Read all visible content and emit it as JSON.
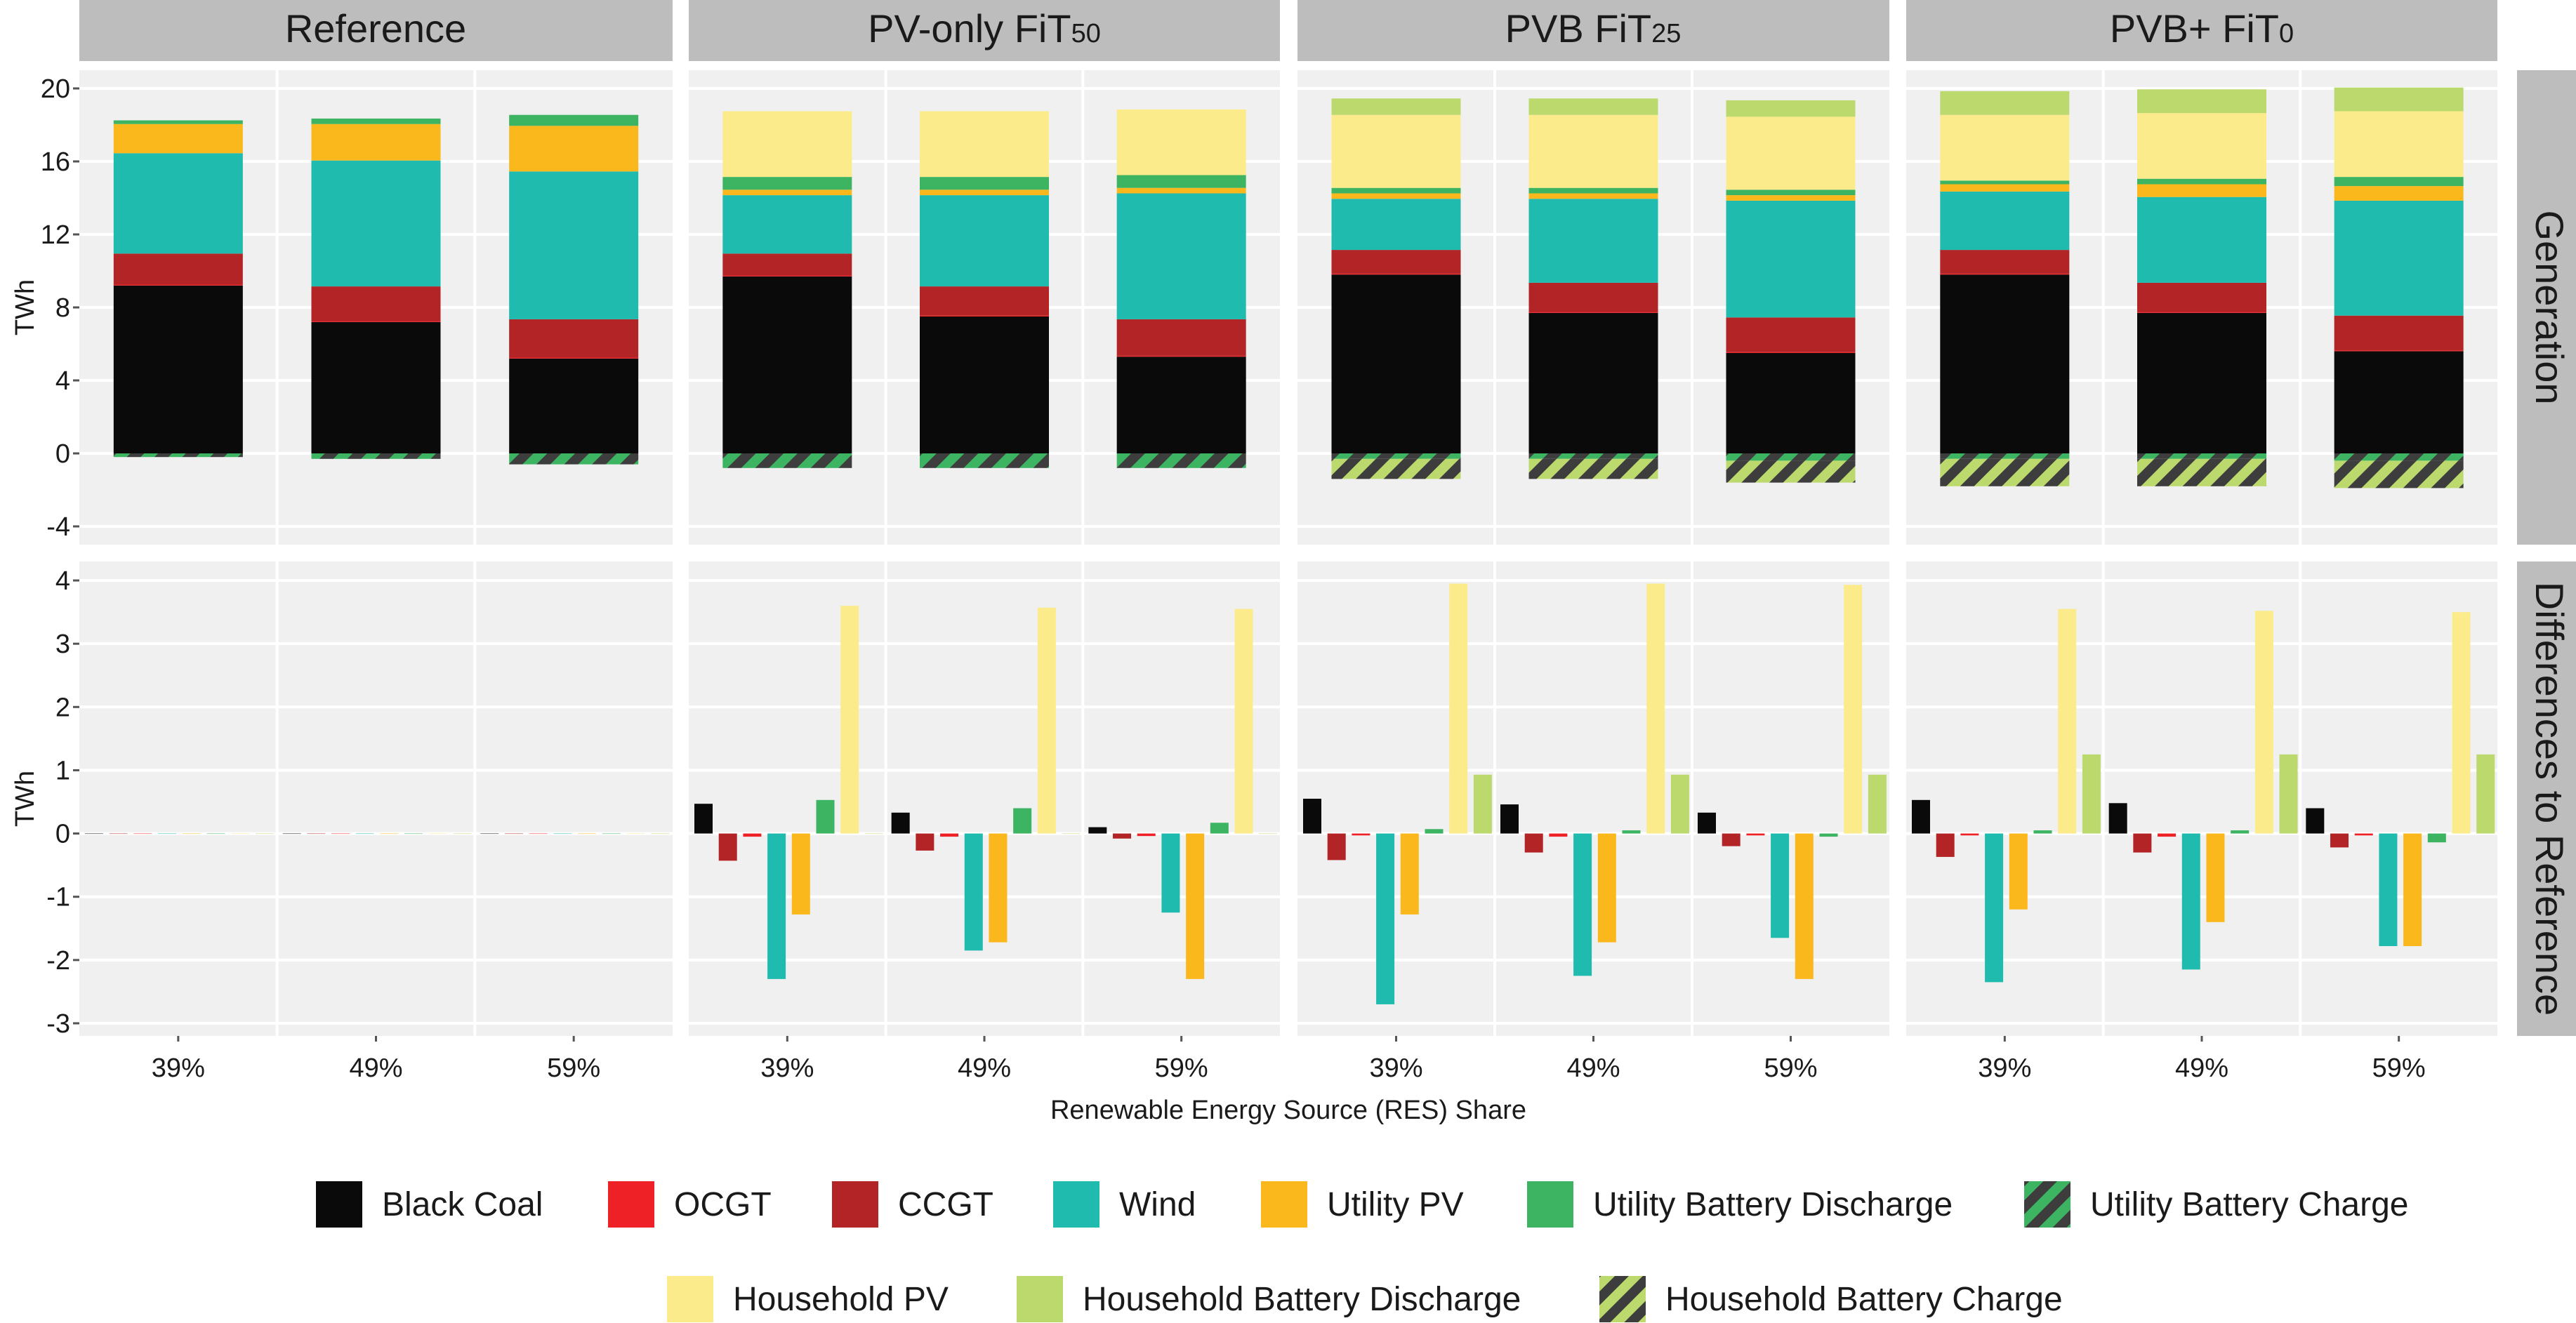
{
  "chart_data": {
    "type": "bar",
    "x_axis_label": "Renewable Energy Source (RES) Share",
    "categories": [
      "39%",
      "49%",
      "59%"
    ],
    "scenarios": [
      {
        "name": "Reference",
        "sub": ""
      },
      {
        "name": "PV-only FiT",
        "sub": "50"
      },
      {
        "name": "PVB FiT",
        "sub": "25"
      },
      {
        "name": "PVB+ FiT",
        "sub": "0"
      }
    ],
    "rows": [
      {
        "strip": "Generation",
        "ylabel": "TWh",
        "ylim": [
          -5,
          21
        ],
        "ticks": [
          20,
          16,
          12,
          8,
          4,
          0,
          -4
        ],
        "tick_labels": [
          "20",
          "16",
          "12",
          "8",
          "4",
          "0",
          "-4"
        ]
      },
      {
        "strip": "Differences to Reference",
        "ylabel": "TWh",
        "ylim": [
          -3.2,
          4.3
        ],
        "ticks": [
          4,
          3,
          2,
          1,
          0,
          -1,
          -2,
          -3
        ],
        "tick_labels": [
          "4",
          "3",
          "2",
          "1",
          "0",
          "-1",
          "-2",
          "-3"
        ]
      }
    ],
    "series": [
      {
        "key": "black_coal",
        "name": "Black Coal",
        "color": "#0a0a0a",
        "pattern": ""
      },
      {
        "key": "ocgt",
        "name": "OCGT",
        "color": "#ee2127",
        "pattern": ""
      },
      {
        "key": "ccgt",
        "name": "CCGT",
        "color": "#b22425",
        "pattern": ""
      },
      {
        "key": "wind",
        "name": "Wind",
        "color": "#1fbbae",
        "pattern": ""
      },
      {
        "key": "utility_pv",
        "name": "Utility PV",
        "color": "#fbb81d",
        "pattern": ""
      },
      {
        "key": "utility_battery_discharge",
        "name": "Utility Battery Discharge",
        "color": "#3db462",
        "pattern": ""
      },
      {
        "key": "utility_battery_charge",
        "name": "Utility Battery Charge",
        "color": "#3db462",
        "pattern": "utility"
      },
      {
        "key": "household_pv",
        "name": "Household PV",
        "color": "#fbeb8b",
        "pattern": ""
      },
      {
        "key": "household_battery_discharge",
        "name": "Household Battery Discharge",
        "color": "#bcd96d",
        "pattern": ""
      },
      {
        "key": "household_battery_charge",
        "name": "Household Battery Charge",
        "color": "#bcd96d",
        "pattern": "household"
      }
    ],
    "legend": {
      "row1": [
        "black_coal",
        "ocgt",
        "ccgt",
        "wind",
        "utility_pv",
        "utility_battery_discharge",
        "utility_battery_charge"
      ],
      "row2": [
        "household_pv",
        "household_battery_discharge",
        "household_battery_charge"
      ]
    },
    "generation": [
      [
        {
          "black_coal": 9.2,
          "ocgt": 0.05,
          "ccgt": 1.7,
          "wind": 5.5,
          "utility_pv": 1.6,
          "utility_battery_discharge": 0.2,
          "household_pv": 0,
          "household_battery_discharge": 0,
          "utility_battery_charge": -0.2,
          "household_battery_charge": 0
        },
        {
          "black_coal": 7.2,
          "ocgt": 0.05,
          "ccgt": 1.9,
          "wind": 6.9,
          "utility_pv": 2.0,
          "utility_battery_discharge": 0.3,
          "household_pv": 0,
          "household_battery_discharge": 0,
          "utility_battery_charge": -0.3,
          "household_battery_charge": 0
        },
        {
          "black_coal": 5.2,
          "ocgt": 0.05,
          "ccgt": 2.1,
          "wind": 8.1,
          "utility_pv": 2.5,
          "utility_battery_discharge": 0.6,
          "household_pv": 0,
          "household_battery_discharge": 0,
          "utility_battery_charge": -0.6,
          "household_battery_charge": 0
        }
      ],
      [
        {
          "black_coal": 9.7,
          "ocgt": 0.05,
          "ccgt": 1.2,
          "wind": 3.2,
          "utility_pv": 0.3,
          "utility_battery_discharge": 0.7,
          "household_pv": 3.6,
          "household_battery_discharge": 0,
          "utility_battery_charge": -0.8,
          "household_battery_charge": 0
        },
        {
          "black_coal": 7.5,
          "ocgt": 0.05,
          "ccgt": 1.6,
          "wind": 5.0,
          "utility_pv": 0.3,
          "utility_battery_discharge": 0.7,
          "household_pv": 3.6,
          "household_battery_discharge": 0,
          "utility_battery_charge": -0.8,
          "household_battery_charge": 0
        },
        {
          "black_coal": 5.3,
          "ocgt": 0.05,
          "ccgt": 2.0,
          "wind": 6.9,
          "utility_pv": 0.3,
          "utility_battery_discharge": 0.7,
          "household_pv": 3.6,
          "household_battery_discharge": 0,
          "utility_battery_charge": -0.8,
          "household_battery_charge": 0
        }
      ],
      [
        {
          "black_coal": 9.8,
          "ocgt": 0.05,
          "ccgt": 1.3,
          "wind": 2.8,
          "utility_pv": 0.3,
          "utility_battery_discharge": 0.3,
          "household_pv": 4.0,
          "household_battery_discharge": 0.9,
          "utility_battery_charge": -0.3,
          "household_battery_charge": -1.1
        },
        {
          "black_coal": 7.7,
          "ocgt": 0.05,
          "ccgt": 1.6,
          "wind": 4.6,
          "utility_pv": 0.3,
          "utility_battery_discharge": 0.3,
          "household_pv": 4.0,
          "household_battery_discharge": 0.9,
          "utility_battery_charge": -0.3,
          "household_battery_charge": -1.1
        },
        {
          "black_coal": 5.5,
          "ocgt": 0.05,
          "ccgt": 1.9,
          "wind": 6.4,
          "utility_pv": 0.3,
          "utility_battery_discharge": 0.3,
          "household_pv": 4.0,
          "household_battery_discharge": 0.9,
          "utility_battery_charge": -0.4,
          "household_battery_charge": -1.2
        }
      ],
      [
        {
          "black_coal": 9.8,
          "ocgt": 0.05,
          "ccgt": 1.3,
          "wind": 3.2,
          "utility_pv": 0.4,
          "utility_battery_discharge": 0.2,
          "household_pv": 3.6,
          "household_battery_discharge": 1.3,
          "utility_battery_charge": -0.3,
          "household_battery_charge": -1.5
        },
        {
          "black_coal": 7.7,
          "ocgt": 0.05,
          "ccgt": 1.6,
          "wind": 4.7,
          "utility_pv": 0.7,
          "utility_battery_discharge": 0.3,
          "household_pv": 3.6,
          "household_battery_discharge": 1.3,
          "utility_battery_charge": -0.3,
          "household_battery_charge": -1.5
        },
        {
          "black_coal": 5.6,
          "ocgt": 0.05,
          "ccgt": 1.9,
          "wind": 6.3,
          "utility_pv": 0.8,
          "utility_battery_discharge": 0.5,
          "household_pv": 3.6,
          "household_battery_discharge": 1.3,
          "utility_battery_charge": -0.4,
          "household_battery_charge": -1.5
        }
      ]
    ],
    "differences": [
      [
        {
          "black_coal": 0,
          "ccgt": 0,
          "ocgt": 0,
          "wind": 0,
          "utility_pv": 0,
          "utility_battery_discharge": 0,
          "household_pv": 0,
          "household_battery_discharge": 0
        },
        {
          "black_coal": 0,
          "ccgt": 0,
          "ocgt": 0,
          "wind": 0,
          "utility_pv": 0,
          "utility_battery_discharge": 0,
          "household_pv": 0,
          "household_battery_discharge": 0
        },
        {
          "black_coal": 0,
          "ccgt": 0,
          "ocgt": 0,
          "wind": 0,
          "utility_pv": 0,
          "utility_battery_discharge": 0,
          "household_pv": 0,
          "household_battery_discharge": 0
        }
      ],
      [
        {
          "black_coal": 0.47,
          "ccgt": -0.43,
          "ocgt": -0.05,
          "wind": -2.3,
          "utility_pv": -1.28,
          "utility_battery_discharge": 0.53,
          "household_pv": 3.6,
          "household_battery_discharge": 0
        },
        {
          "black_coal": 0.33,
          "ccgt": -0.27,
          "ocgt": -0.05,
          "wind": -1.85,
          "utility_pv": -1.72,
          "utility_battery_discharge": 0.4,
          "household_pv": 3.57,
          "household_battery_discharge": 0
        },
        {
          "black_coal": 0.1,
          "ccgt": -0.08,
          "ocgt": -0.04,
          "wind": -1.25,
          "utility_pv": -2.3,
          "utility_battery_discharge": 0.17,
          "household_pv": 3.55,
          "household_battery_discharge": 0
        }
      ],
      [
        {
          "black_coal": 0.55,
          "ccgt": -0.42,
          "ocgt": -0.03,
          "wind": -2.7,
          "utility_pv": -1.28,
          "utility_battery_discharge": 0.07,
          "household_pv": 3.95,
          "household_battery_discharge": 0.93
        },
        {
          "black_coal": 0.46,
          "ccgt": -0.3,
          "ocgt": -0.05,
          "wind": -2.25,
          "utility_pv": -1.72,
          "utility_battery_discharge": 0.05,
          "household_pv": 3.95,
          "household_battery_discharge": 0.93
        },
        {
          "black_coal": 0.33,
          "ccgt": -0.2,
          "ocgt": -0.03,
          "wind": -1.65,
          "utility_pv": -2.3,
          "utility_battery_discharge": -0.05,
          "household_pv": 3.93,
          "household_battery_discharge": 0.93
        }
      ],
      [
        {
          "black_coal": 0.53,
          "ccgt": -0.37,
          "ocgt": -0.03,
          "wind": -2.35,
          "utility_pv": -1.2,
          "utility_battery_discharge": 0.05,
          "household_pv": 3.55,
          "household_battery_discharge": 1.25
        },
        {
          "black_coal": 0.48,
          "ccgt": -0.3,
          "ocgt": -0.05,
          "wind": -2.15,
          "utility_pv": -1.4,
          "utility_battery_discharge": 0.05,
          "household_pv": 3.52,
          "household_battery_discharge": 1.25
        },
        {
          "black_coal": 0.4,
          "ccgt": -0.22,
          "ocgt": -0.03,
          "wind": -1.78,
          "utility_pv": -1.78,
          "utility_battery_discharge": -0.14,
          "household_pv": 3.5,
          "household_battery_discharge": 1.25
        }
      ]
    ]
  }
}
